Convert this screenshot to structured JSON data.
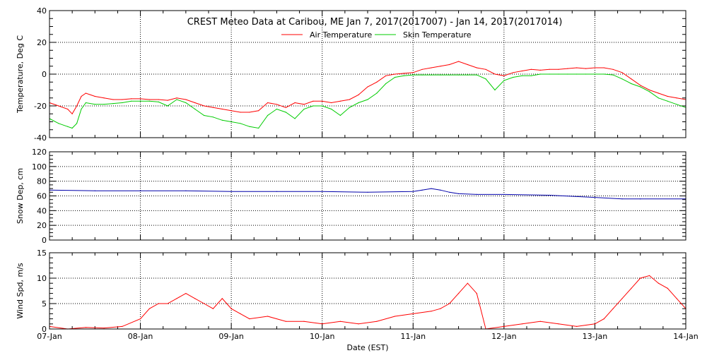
{
  "chart_data": [
    {
      "type": "line",
      "title": "CREST Meteo Data at Caribou, ME   Jan  7, 2017(2017007) - Jan 14, 2017(2017014)",
      "ylabel": "Temperature, Deg C",
      "ylim": [
        -40,
        40
      ],
      "yticks": [
        -40,
        -20,
        0,
        20,
        40
      ],
      "grid": true,
      "legend_placement": "top-center",
      "series": [
        {
          "name": "Air Temperature",
          "color": "#ff0000",
          "x": [
            0,
            0.1,
            0.2,
            0.25,
            0.3,
            0.35,
            0.4,
            0.5,
            0.6,
            0.7,
            0.8,
            0.9,
            1.0,
            1.1,
            1.2,
            1.3,
            1.4,
            1.5,
            1.6,
            1.7,
            1.8,
            1.9,
            2.0,
            2.1,
            2.2,
            2.3,
            2.4,
            2.5,
            2.6,
            2.7,
            2.8,
            2.9,
            3.0,
            3.1,
            3.2,
            3.3,
            3.4,
            3.5,
            3.6,
            3.7,
            3.8,
            3.9,
            4.0,
            4.1,
            4.2,
            4.3,
            4.4,
            4.5,
            4.6,
            4.7,
            4.8,
            4.9,
            5.0,
            5.1,
            5.2,
            5.3,
            5.4,
            5.5,
            5.6,
            5.7,
            5.8,
            5.9,
            6.0,
            6.1,
            6.2,
            6.3,
            6.4,
            6.5,
            6.6,
            6.7,
            6.8,
            6.9,
            7.0
          ],
          "values": [
            -18,
            -20,
            -22,
            -25,
            -20,
            -14,
            -12,
            -14,
            -15,
            -16,
            -16,
            -15.5,
            -15.5,
            -16,
            -16,
            -16.5,
            -15,
            -16,
            -18,
            -20,
            -21,
            -22,
            -23,
            -24,
            -24,
            -23,
            -18,
            -19,
            -21,
            -18,
            -19,
            -17,
            -17,
            -18,
            -17,
            -16,
            -13,
            -8,
            -5,
            -1,
            0,
            0.5,
            1,
            3,
            4,
            5,
            6,
            8,
            6,
            4,
            3,
            0,
            -1,
            1,
            2,
            3,
            2.5,
            3,
            3,
            3.5,
            4,
            3.5,
            4,
            4,
            3,
            1,
            -3,
            -7,
            -10,
            -12,
            -14,
            -15,
            -16
          ]
        },
        {
          "name": "Skin Temperature",
          "color": "#00cc00",
          "x": [
            0,
            0.1,
            0.2,
            0.25,
            0.3,
            0.35,
            0.4,
            0.5,
            0.6,
            0.7,
            0.8,
            0.9,
            1.0,
            1.1,
            1.2,
            1.3,
            1.4,
            1.5,
            1.6,
            1.7,
            1.8,
            1.9,
            2.0,
            2.1,
            2.2,
            2.3,
            2.4,
            2.5,
            2.6,
            2.7,
            2.8,
            2.9,
            3.0,
            3.1,
            3.2,
            3.3,
            3.4,
            3.5,
            3.6,
            3.7,
            3.8,
            3.9,
            4.0,
            4.1,
            4.2,
            4.3,
            4.4,
            4.5,
            4.6,
            4.7,
            4.8,
            4.9,
            5.0,
            5.1,
            5.2,
            5.3,
            5.4,
            5.5,
            5.6,
            5.7,
            5.8,
            5.9,
            6.0,
            6.1,
            6.2,
            6.3,
            6.4,
            6.5,
            6.6,
            6.7,
            6.8,
            6.9,
            7.0
          ],
          "values": [
            -28,
            -31,
            -33,
            -34,
            -31,
            -22,
            -18,
            -19,
            -19,
            -18.5,
            -18,
            -17,
            -17,
            -17,
            -17.5,
            -20,
            -16,
            -18,
            -22,
            -26,
            -27,
            -29,
            -30,
            -31,
            -33,
            -34,
            -26,
            -22,
            -24,
            -28,
            -22,
            -20,
            -20,
            -22,
            -26,
            -21,
            -18,
            -16,
            -12,
            -6,
            -2,
            -1,
            -0.5,
            -0.5,
            -0.5,
            -0.5,
            -0.5,
            -0.5,
            -0.5,
            -0.5,
            -3,
            -10,
            -4,
            -2,
            -1,
            -1,
            0,
            0,
            0,
            0,
            0,
            0,
            0,
            0,
            -0.5,
            -3,
            -6,
            -8,
            -11,
            -15,
            -17,
            -19,
            -21
          ]
        }
      ]
    },
    {
      "type": "line",
      "ylabel": "Snow Dep, cm",
      "ylim": [
        0,
        120
      ],
      "yticks": [
        0,
        20,
        40,
        60,
        80,
        100,
        120
      ],
      "grid": true,
      "series": [
        {
          "color": "#0000aa",
          "x": [
            0,
            0.5,
            1.0,
            1.5,
            2.0,
            2.5,
            3.0,
            3.5,
            4.0,
            4.1,
            4.2,
            4.3,
            4.4,
            4.5,
            4.7,
            5.0,
            5.5,
            6.0,
            6.3,
            6.5,
            7.0
          ],
          "values": [
            68,
            67,
            67,
            67,
            66,
            66,
            66,
            65,
            66,
            68,
            70,
            68,
            65,
            63,
            62,
            62,
            61,
            58,
            56,
            56,
            56
          ]
        }
      ]
    },
    {
      "type": "line",
      "xlabel": "Date (EST)",
      "ylabel": "Wind Spd, m/s",
      "ylim": [
        0,
        15
      ],
      "yticks": [
        0,
        5,
        10,
        15
      ],
      "xticks": [
        "07-Jan",
        "08-Jan",
        "09-Jan",
        "10-Jan",
        "11-Jan",
        "12-Jan",
        "13-Jan",
        "14-Jan"
      ],
      "grid": true,
      "series": [
        {
          "color": "#ff0000",
          "x": [
            0,
            0.2,
            0.4,
            0.6,
            0.8,
            1.0,
            1.1,
            1.2,
            1.3,
            1.4,
            1.5,
            1.6,
            1.7,
            1.8,
            1.9,
            2.0,
            2.1,
            2.2,
            2.4,
            2.6,
            2.8,
            3.0,
            3.2,
            3.4,
            3.6,
            3.8,
            4.0,
            4.2,
            4.3,
            4.4,
            4.5,
            4.6,
            4.7,
            4.8,
            5.0,
            5.2,
            5.4,
            5.6,
            5.8,
            6.0,
            6.1,
            6.2,
            6.3,
            6.4,
            6.5,
            6.6,
            6.7,
            6.8,
            6.9,
            7.0
          ],
          "values": [
            0.5,
            0,
            0.3,
            0.2,
            0.5,
            2,
            4,
            5,
            5,
            6,
            7,
            6,
            5,
            4,
            6,
            4,
            3,
            2,
            2.5,
            1.5,
            1.5,
            1,
            1.5,
            1,
            1.5,
            2.5,
            3,
            3.5,
            4,
            5,
            7,
            9,
            7,
            0,
            0.5,
            1,
            1.5,
            1,
            0.5,
            1,
            2,
            4,
            6,
            8,
            10,
            10.5,
            9,
            8,
            6,
            4
          ]
        }
      ]
    }
  ]
}
